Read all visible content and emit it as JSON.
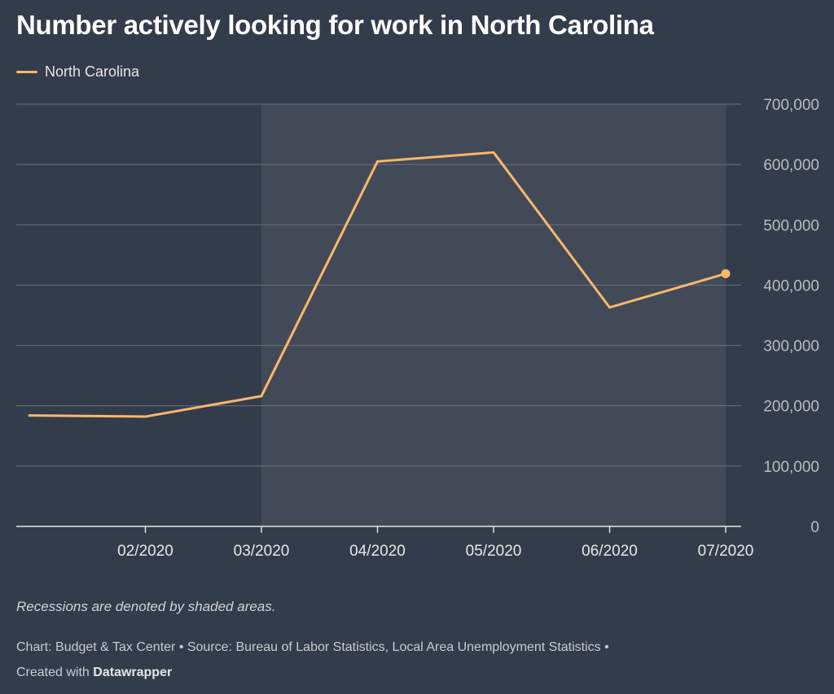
{
  "colors": {
    "background": "#333c4a",
    "shading": "#424a57",
    "line": "#fbb76b",
    "grid": "#6b727d"
  },
  "chart_data": {
    "type": "line",
    "title": "Number actively looking for work in North Carolina",
    "legend": {
      "position": "top-left",
      "entries": [
        "North Carolina"
      ]
    },
    "x": [
      "01/2020",
      "02/2020",
      "03/2020",
      "04/2020",
      "05/2020",
      "06/2020",
      "07/2020"
    ],
    "x_tick_labels": [
      "02/2020",
      "03/2020",
      "04/2020",
      "05/2020",
      "06/2020",
      "07/2020"
    ],
    "series": [
      {
        "name": "North Carolina",
        "values": [
          184000,
          182000,
          216000,
          605000,
          620000,
          363000,
          419000
        ]
      }
    ],
    "ylim": [
      0,
      700000
    ],
    "y_ticks": [
      0,
      100000,
      200000,
      300000,
      400000,
      500000,
      600000,
      700000
    ],
    "y_tick_labels": [
      "0",
      "100,000",
      "200,000",
      "300,000",
      "400,000",
      "500,000",
      "600,000",
      "700,000"
    ],
    "y_axis_position": "right",
    "grid": true,
    "shaded_ranges": [
      {
        "from": "03/2020",
        "to": "07/2020",
        "meaning": "recession"
      }
    ],
    "end_marker": true
  },
  "footer": {
    "note": "Recessions are denoted by shaded areas.",
    "credit_prefix": "Chart: Budget & Tax Center • Source: Bureau of Labor Statistics, Local Area Unemployment Statistics •",
    "credit_created": "Created with",
    "credit_brand": "Datawrapper"
  }
}
